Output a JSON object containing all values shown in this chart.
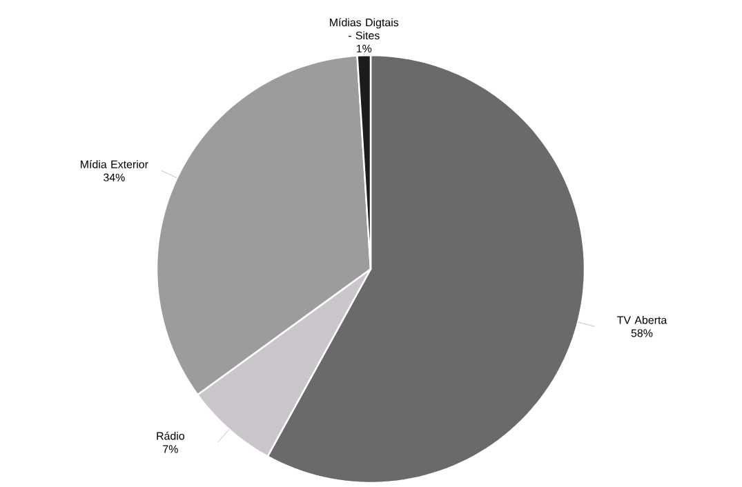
{
  "chart_data": {
    "type": "pie",
    "categories": [
      "TV Aberta",
      "Rádio",
      "Mídia Exterior",
      "Mídias Digtais - Sites"
    ],
    "values": [
      58,
      7,
      34,
      1
    ],
    "value_labels": [
      "58%",
      "7%",
      "34%",
      "1%"
    ],
    "colors": [
      "#6a6a6a",
      "#cbc6cb",
      "#9c9c9c",
      "#1c1c1c"
    ]
  }
}
